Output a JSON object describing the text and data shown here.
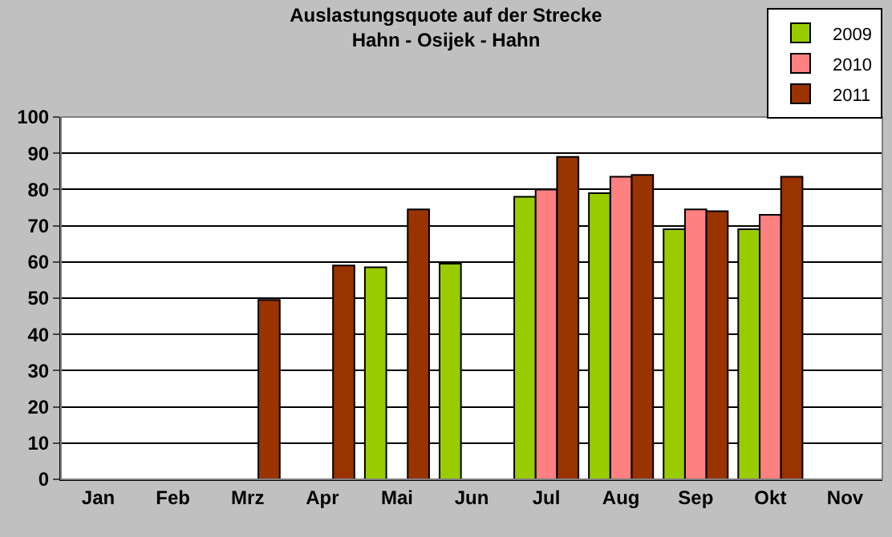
{
  "chart_data": {
    "type": "bar",
    "title": "Auslastungsquote auf der Strecke\nHahn - Osijek - Hahn",
    "categories": [
      "Jan",
      "Feb",
      "Mrz",
      "Apr",
      "Mai",
      "Jun",
      "Jul",
      "Aug",
      "Sep",
      "Okt",
      "Nov"
    ],
    "series": [
      {
        "name": "2009",
        "color": "#99cc00",
        "values": [
          null,
          null,
          null,
          null,
          58.5,
          59.5,
          78,
          79,
          69,
          69,
          null
        ]
      },
      {
        "name": "2010",
        "color": "#ff8080",
        "values": [
          null,
          null,
          null,
          null,
          null,
          null,
          80,
          83.5,
          74.5,
          73,
          null
        ]
      },
      {
        "name": "2011",
        "color": "#993300",
        "values": [
          null,
          null,
          49.5,
          59,
          74.5,
          null,
          89,
          84,
          74,
          83.5,
          null
        ]
      }
    ],
    "ylim": [
      0,
      100
    ],
    "yticks": [
      0,
      10,
      20,
      30,
      40,
      50,
      60,
      70,
      80,
      90,
      100
    ],
    "grid": "y",
    "legend": "top right"
  }
}
